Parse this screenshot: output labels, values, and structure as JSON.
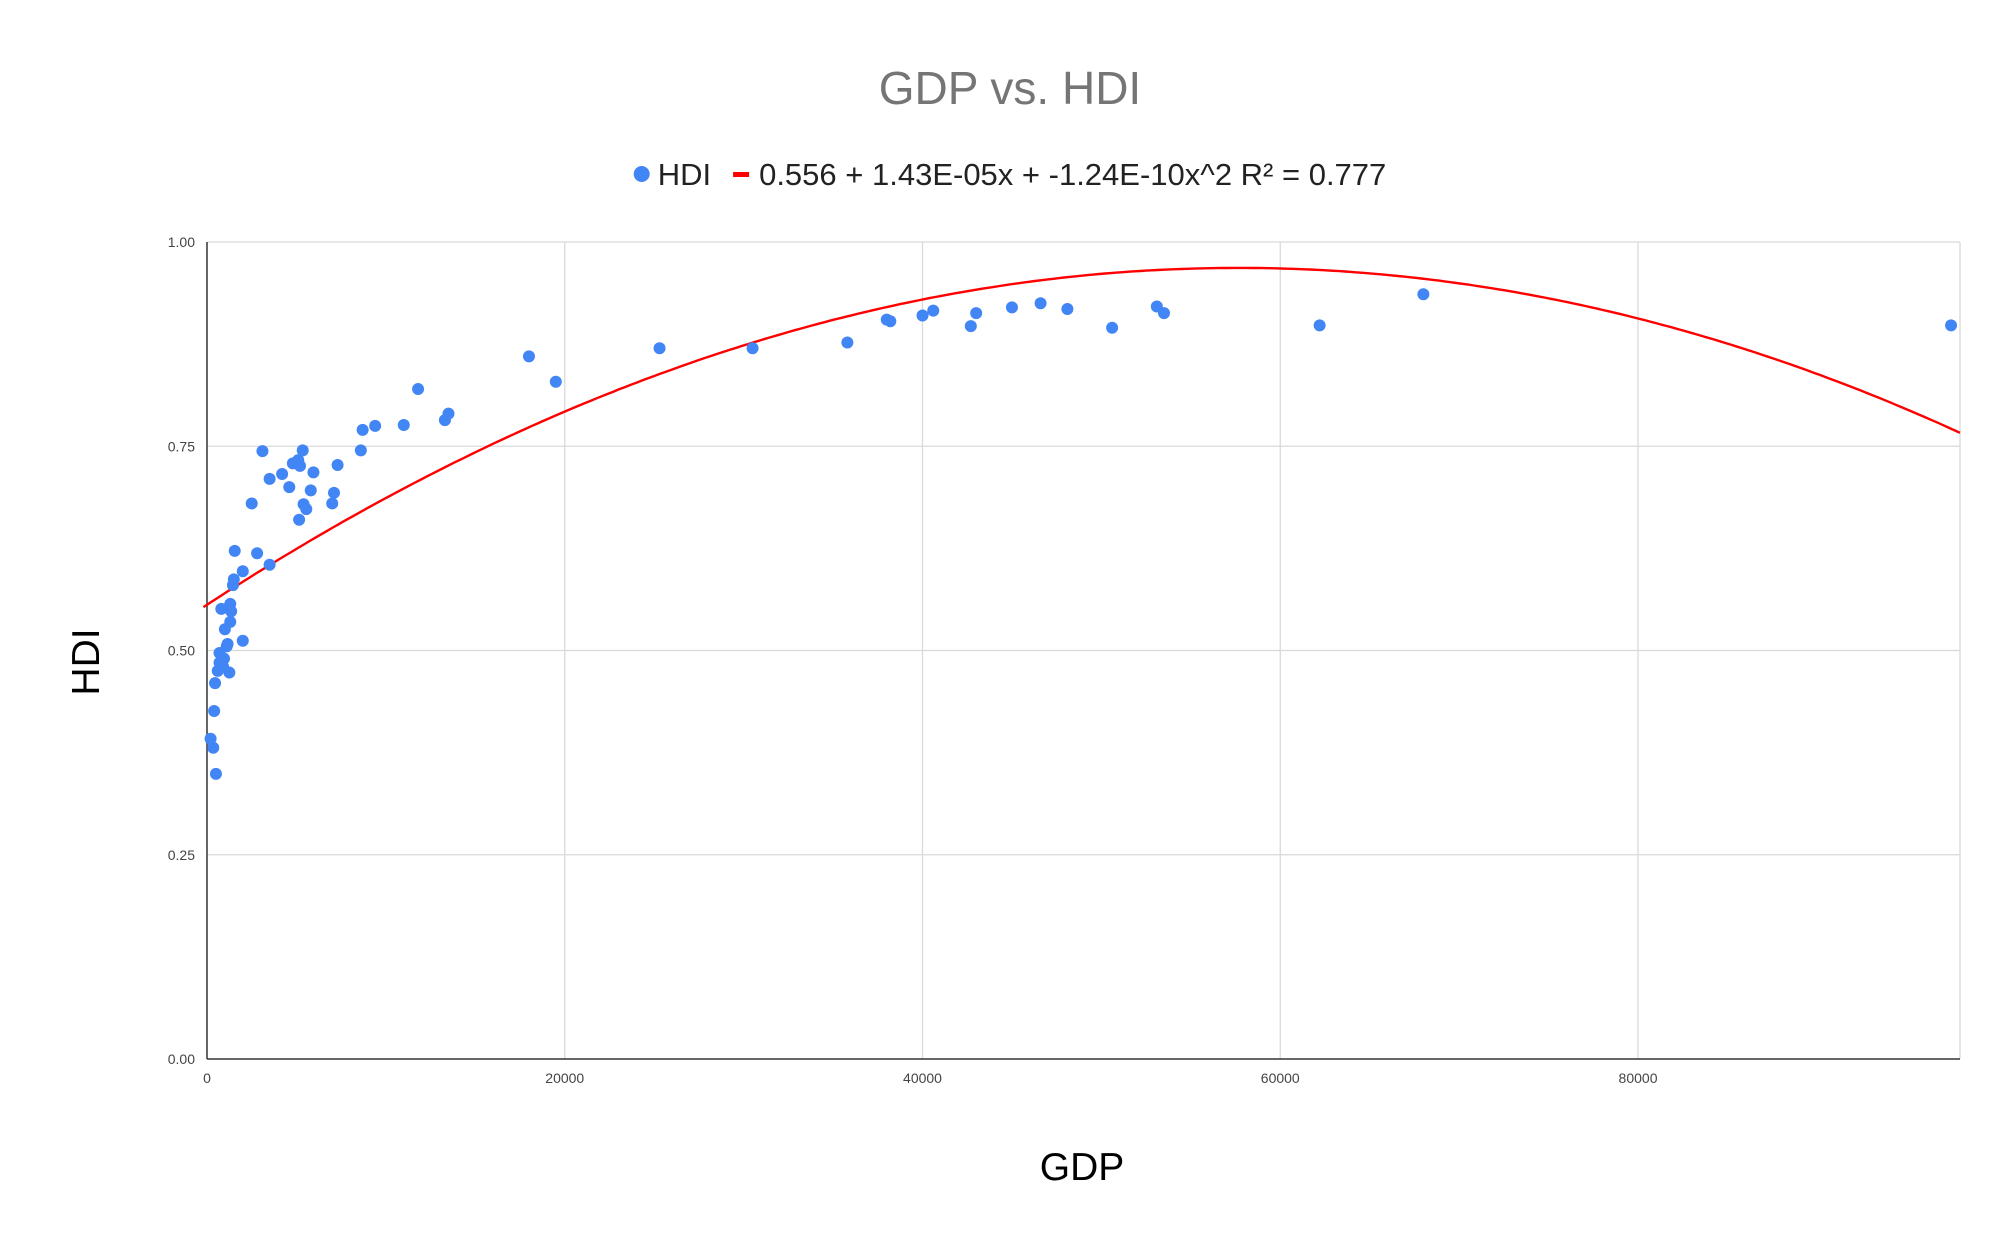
{
  "chart_data": {
    "type": "scatter",
    "title": "GDP vs. HDI",
    "xlabel": "GDP",
    "ylabel": "HDI",
    "xlim": [
      0,
      98000
    ],
    "ylim": [
      0,
      1
    ],
    "x_ticks": [
      "0",
      "20000",
      "40000",
      "60000",
      "80000"
    ],
    "x_tick_values": [
      0,
      20000,
      40000,
      60000,
      80000
    ],
    "y_ticks": [
      "0.00",
      "0.25",
      "0.50",
      "0.75",
      "1.00"
    ],
    "y_tick_values": [
      0,
      0.25,
      0.5,
      0.75,
      1.0
    ],
    "grid": true,
    "legend_position": "top",
    "series": [
      {
        "name": "HDI",
        "color": "#4285f4",
        "points": [
          [
            200,
            0.392
          ],
          [
            350,
            0.381
          ],
          [
            500,
            0.349
          ],
          [
            400,
            0.426
          ],
          [
            450,
            0.46
          ],
          [
            600,
            0.475
          ],
          [
            700,
            0.485
          ],
          [
            700,
            0.497
          ],
          [
            800,
            0.551
          ],
          [
            900,
            0.48
          ],
          [
            950,
            0.49
          ],
          [
            1000,
            0.526
          ],
          [
            1100,
            0.505
          ],
          [
            1150,
            0.508
          ],
          [
            1250,
            0.473
          ],
          [
            1300,
            0.557
          ],
          [
            1300,
            0.535
          ],
          [
            1350,
            0.548
          ],
          [
            1450,
            0.58
          ],
          [
            1500,
            0.587
          ],
          [
            1550,
            0.622
          ],
          [
            2000,
            0.512
          ],
          [
            2000,
            0.597
          ],
          [
            2500,
            0.68
          ],
          [
            2800,
            0.619
          ],
          [
            3100,
            0.744
          ],
          [
            3500,
            0.605
          ],
          [
            3500,
            0.71
          ],
          [
            4200,
            0.716
          ],
          [
            4600,
            0.7
          ],
          [
            4800,
            0.729
          ],
          [
            5100,
            0.733
          ],
          [
            5150,
            0.66
          ],
          [
            5200,
            0.726
          ],
          [
            5350,
            0.745
          ],
          [
            5400,
            0.679
          ],
          [
            5550,
            0.673
          ],
          [
            5800,
            0.696
          ],
          [
            5950,
            0.718
          ],
          [
            7000,
            0.68
          ],
          [
            7100,
            0.693
          ],
          [
            7300,
            0.727
          ],
          [
            8600,
            0.745
          ],
          [
            8700,
            0.77
          ],
          [
            9400,
            0.775
          ],
          [
            11000,
            0.776
          ],
          [
            11800,
            0.82
          ],
          [
            13300,
            0.782
          ],
          [
            13500,
            0.79
          ],
          [
            18000,
            0.86
          ],
          [
            19500,
            0.829
          ],
          [
            25300,
            0.87
          ],
          [
            30500,
            0.87
          ],
          [
            35800,
            0.877
          ],
          [
            38000,
            0.905
          ],
          [
            38200,
            0.903
          ],
          [
            40000,
            0.91
          ],
          [
            40600,
            0.916
          ],
          [
            42700,
            0.897
          ],
          [
            43000,
            0.913
          ],
          [
            45000,
            0.92
          ],
          [
            46600,
            0.925
          ],
          [
            48100,
            0.918
          ],
          [
            50600,
            0.895
          ],
          [
            53100,
            0.921
          ],
          [
            53500,
            0.913
          ],
          [
            62200,
            0.898
          ],
          [
            68000,
            0.936
          ],
          [
            97500,
            0.898
          ]
        ]
      },
      {
        "name": "0.556 + 1.43E-05x + -1.24E-10x^2 R² = 0.777",
        "type": "trendline",
        "color": "#ff0000",
        "coefficients": [
          0.556,
          1.43e-05,
          -1.24e-10
        ],
        "r_squared": 0.777
      }
    ]
  }
}
